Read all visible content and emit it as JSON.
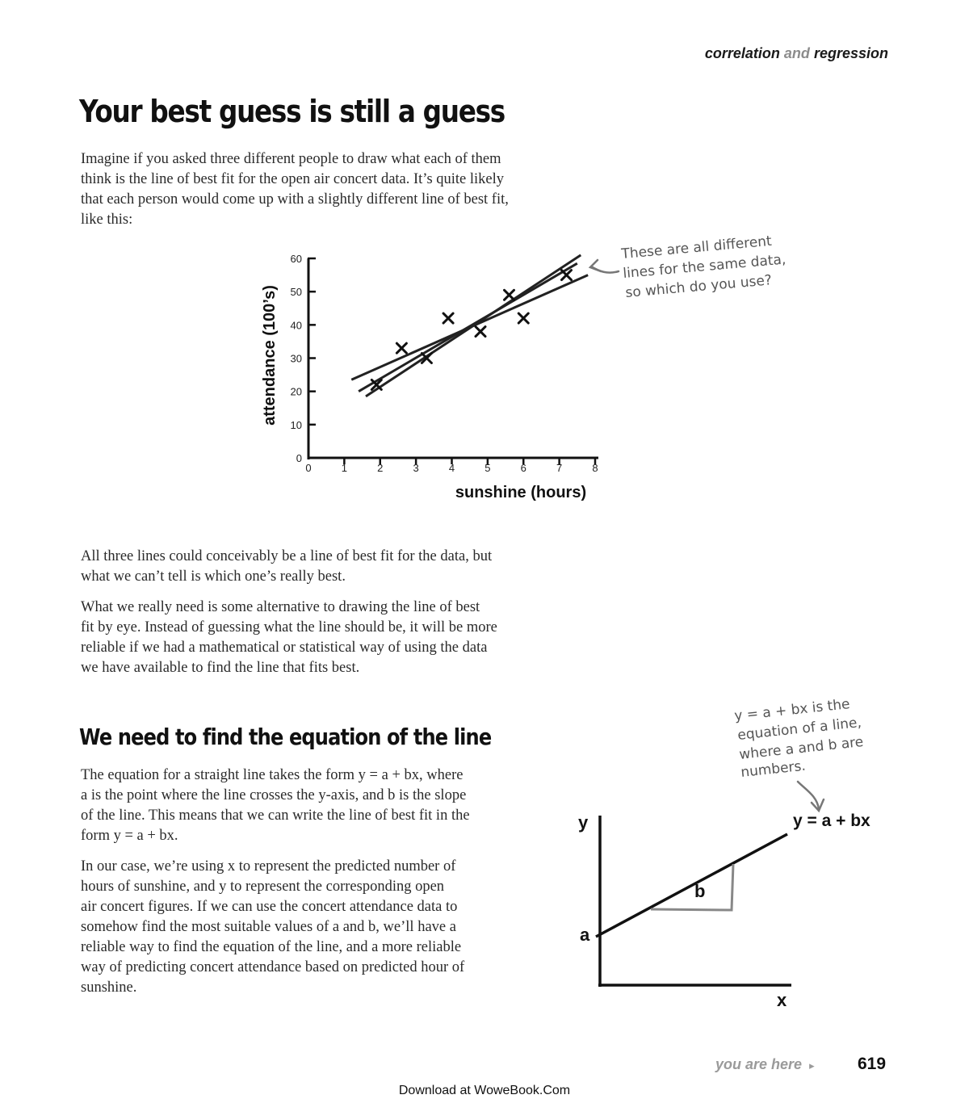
{
  "header": {
    "section_part1": "correlation",
    "section_and": "and",
    "section_part2": "regression"
  },
  "title": "Your best guess is still a guess",
  "intro": [
    "Imagine if you asked three different people to draw what each of them",
    "think is the line of best fit for the open air concert data. It’s quite likely",
    "that each person would come up with a slightly different line of best fit,",
    "like this:"
  ],
  "chart_data": {
    "type": "scatter",
    "title": "",
    "xlabel": "sunshine (hours)",
    "ylabel": "attendance (100’s)",
    "xlim": [
      0,
      8
    ],
    "ylim": [
      0,
      60
    ],
    "x_ticks": [
      "0",
      "1",
      "2",
      "3",
      "4",
      "5",
      "6",
      "7",
      "8"
    ],
    "y_ticks": [
      "0",
      "10",
      "20",
      "30",
      "40",
      "50",
      "60"
    ],
    "marker": "x",
    "grid": false,
    "points": [
      {
        "x": 1.9,
        "y": 22
      },
      {
        "x": 2.6,
        "y": 33
      },
      {
        "x": 3.3,
        "y": 30
      },
      {
        "x": 3.9,
        "y": 42
      },
      {
        "x": 4.8,
        "y": 38
      },
      {
        "x": 5.6,
        "y": 49
      },
      {
        "x": 6.0,
        "y": 42
      },
      {
        "x": 7.2,
        "y": 55
      }
    ],
    "fit_lines": [
      {
        "x0": 1.2,
        "y0": 23.5,
        "x1": 7.8,
        "y1": 55
      },
      {
        "x0": 1.4,
        "y0": 20,
        "x1": 7.5,
        "y1": 58.5
      },
      {
        "x0": 1.6,
        "y0": 18.5,
        "x1": 7.6,
        "y1": 61
      }
    ],
    "annotation": [
      "These are all different",
      "lines for the same data,",
      "so which do you use?"
    ]
  },
  "middle_paragraphs": [
    [
      "All three lines could conceivably be a line of best fit for the data, but",
      "what we can’t tell is which one’s really best."
    ],
    [
      "What we really need is some alternative to drawing the line of best",
      "fit by eye. Instead of guessing what the line should be, it will be more",
      "reliable if we had a mathematical or statistical way of using the data",
      "we have available to find the line that fits best."
    ]
  ],
  "subtitle": "We need to find the equation of the line",
  "lower_paragraphs": [
    [
      "The equation for a straight line takes the form y = a + bx, where",
      "a is the point where the line crosses the y-axis, and b is the slope",
      "of the line. This means that we can write the line of best fit in the",
      "form y = a + bx."
    ],
    [
      "In our case, we’re using x to represent the predicted number of",
      "hours of sunshine, and y to represent the corresponding open",
      "air concert figures. If we can use the concert attendance data to",
      "somehow find the most suitable values of a and b, we’ll have a",
      "reliable way to find the equation of the line, and a more reliable",
      "way of predicting concert attendance based on predicted hour of",
      "sunshine."
    ]
  ],
  "equation_diagram": {
    "annotation": [
      "y = a + bx is the",
      "equation of a line,",
      "where a and b are",
      "numbers."
    ],
    "y_label": "y",
    "x_label": "x",
    "a_label": "a",
    "b_label": "b",
    "equation_label": "y = a + bx"
  },
  "footer": {
    "you_are_here": "you are here",
    "arrow": "▸",
    "page_number": "619",
    "download": "Download at WoweBook.Com"
  }
}
